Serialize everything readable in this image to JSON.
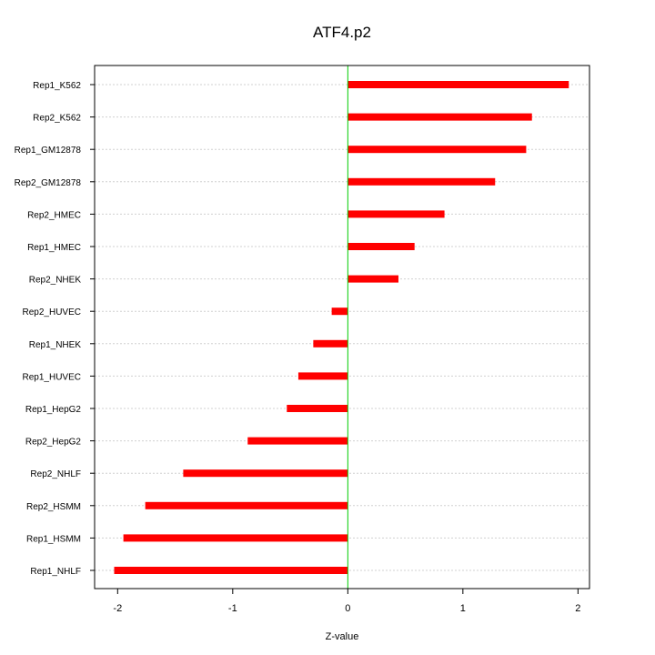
{
  "chart_data": {
    "type": "bar",
    "orientation": "horizontal",
    "title": "ATF4.p2",
    "xlabel": "Z-value",
    "ylabel": "",
    "xlim": [
      -2.2,
      2.1
    ],
    "xticks": [
      -2,
      -1,
      0,
      1,
      2
    ],
    "grid": true,
    "bar_color": "#ff0000",
    "zero_line_color": "#00cc00",
    "categories": [
      "Rep1_K562",
      "Rep2_K562",
      "Rep1_GM12878",
      "Rep2_GM12878",
      "Rep2_HMEC",
      "Rep1_HMEC",
      "Rep2_NHEK",
      "Rep2_HUVEC",
      "Rep1_NHEK",
      "Rep1_HUVEC",
      "Rep1_HepG2",
      "Rep2_HepG2",
      "Rep2_NHLF",
      "Rep2_HSMM",
      "Rep1_HSMM",
      "Rep1_NHLF"
    ],
    "values": [
      1.92,
      1.6,
      1.55,
      1.28,
      0.84,
      0.58,
      0.44,
      -0.14,
      -0.3,
      -0.43,
      -0.53,
      -0.87,
      -1.43,
      -1.76,
      -1.95,
      -2.03
    ]
  }
}
